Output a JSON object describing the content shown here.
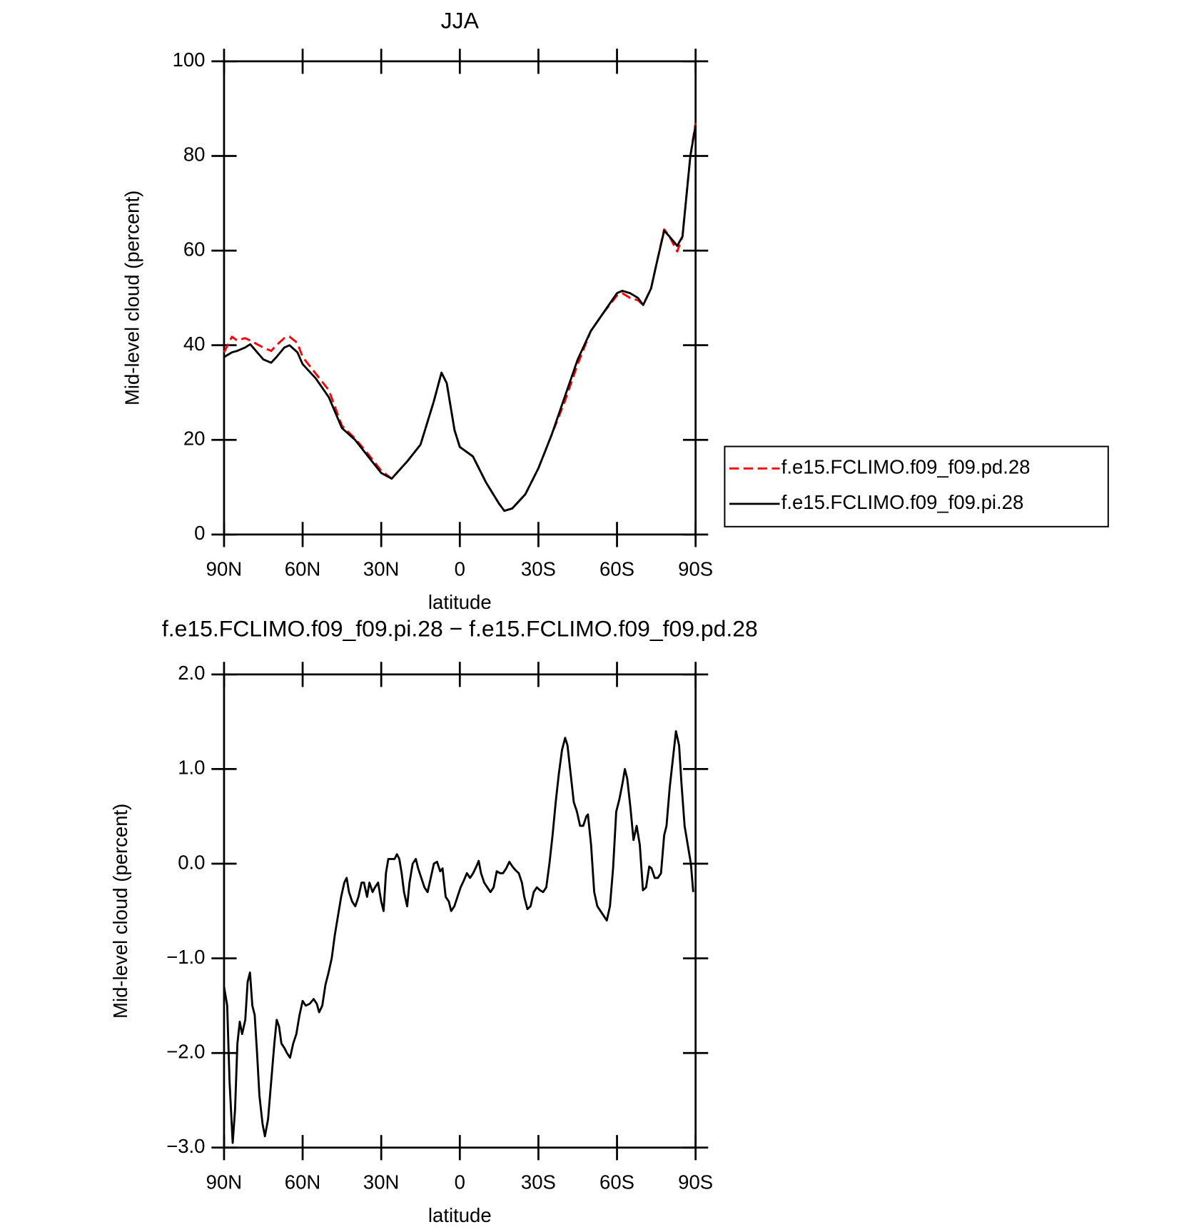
{
  "chart_data": [
    {
      "type": "line",
      "title": "JJA",
      "x_label": "latitude",
      "y_label": "Mid-level cloud (percent)",
      "x": [
        90,
        87,
        85,
        82,
        80,
        75,
        72,
        70,
        67,
        65,
        62,
        60,
        55,
        50,
        45,
        40,
        35,
        30,
        26,
        20,
        15,
        10,
        7,
        5,
        2,
        0,
        -5,
        -10,
        -15,
        -17,
        -20,
        -25,
        -30,
        -35,
        -40,
        -45,
        -50,
        -55,
        -60,
        -62,
        -65,
        -68,
        -70,
        -73,
        -75,
        -78,
        -80,
        -83,
        -85,
        -88,
        -90
      ],
      "series": [
        {
          "name": "f.e15.FCLIMO.f09_f09.pd.28",
          "color": "#ff0000",
          "dash": true,
          "values": [
            38.5,
            41.8,
            41,
            41.5,
            41,
            39.5,
            38.8,
            40,
            41.5,
            41.8,
            40.5,
            37.5,
            34,
            30.5,
            23,
            20.3,
            17,
            13.5,
            11.8,
            15.5,
            19,
            28,
            34.2,
            32,
            22,
            18.5,
            16.5,
            11,
            6.5,
            5,
            5.5,
            8.5,
            14,
            21,
            28,
            36,
            43,
            47,
            50.5,
            51,
            50,
            49.5,
            48.5,
            52,
            57,
            64.5,
            63,
            59.8,
            63,
            80,
            87
          ]
        },
        {
          "name": "f.e15.FCLIMO.f09_f09.pi.28",
          "color": "#000000",
          "dash": false,
          "values": [
            37.5,
            38.5,
            38.8,
            39.5,
            40.2,
            37,
            36.3,
            37.5,
            39.5,
            40,
            38.5,
            36,
            33,
            29,
            22.5,
            20,
            16.5,
            13,
            11.8,
            15.5,
            19,
            28,
            34.2,
            32,
            22,
            18.5,
            16.5,
            11,
            6.5,
            5,
            5.5,
            8.5,
            14,
            21,
            29,
            37,
            43,
            47,
            51,
            51.5,
            51,
            50,
            48.5,
            52,
            57,
            64.2,
            63,
            61,
            63,
            80,
            86.5
          ]
        }
      ],
      "xlim": [
        90,
        -90
      ],
      "xticks": [
        {
          "value": 90,
          "label": "90N"
        },
        {
          "value": 60,
          "label": "60N"
        },
        {
          "value": 30,
          "label": "30N"
        },
        0,
        {
          "value": -30,
          "label": "30S"
        },
        {
          "value": -60,
          "label": "60S"
        },
        {
          "value": -90,
          "label": "90S"
        }
      ],
      "ylim": [
        0,
        100
      ],
      "yticks": [
        0,
        20,
        40,
        60,
        80,
        100
      ],
      "legend": "right"
    },
    {
      "type": "line",
      "title": "f.e15.FCLIMO.f09_f09.pi.28 − f.e15.FCLIMO.f09_f09.pd.28",
      "x_label": "latitude",
      "y_label": "Mid-level cloud (percent)",
      "x": [
        90,
        88.8,
        87.9,
        86.7,
        85.8,
        84.9,
        84,
        83.1,
        81.9,
        81,
        80.1,
        79.2,
        78.3,
        77.4,
        76.5,
        75.3,
        74.4,
        73.2,
        72,
        70.8,
        69.9,
        69,
        68.1,
        66.9,
        66,
        64.8,
        63.6,
        62.4,
        61.2,
        60,
        58.8,
        57.3,
        55.8,
        54.6,
        53.7,
        52.5,
        51.3,
        50.1,
        48.9,
        47.7,
        46.5,
        45.3,
        44.1,
        43.2,
        42.3,
        41.1,
        39.9,
        38.7,
        37.5,
        36.6,
        35.4,
        34.5,
        33.3,
        32.4,
        31.2,
        30,
        29.1,
        28.2,
        27.3,
        26.1,
        24.9,
        24,
        23.1,
        22.2,
        21.3,
        20.1,
        19.2,
        18,
        16.8,
        15.9,
        14.7,
        13.5,
        12.3,
        11.1,
        9.9,
        8.7,
        7.5,
        6.6,
        5.4,
        4.2,
        3.3,
        2.1,
        0.9,
        -0.3,
        -1.5,
        -2.7,
        -3.9,
        -5.1,
        -6.3,
        -7.2,
        -8.1,
        -9.3,
        -10.5,
        -11.7,
        -12.9,
        -14.1,
        -15.3,
        -16.5,
        -17.7,
        -18.9,
        -20.1,
        -21.3,
        -22.5,
        -23.7,
        -24.6,
        -25.8,
        -27,
        -28.2,
        -29.4,
        -30.6,
        -31.8,
        -33,
        -34.2,
        -35.4,
        -36.6,
        -37.8,
        -39,
        -40.2,
        -41.1,
        -42.3,
        -43.5,
        -44.7,
        -45.9,
        -47.1,
        -48.3,
        -48.9,
        -50.1,
        -51.3,
        -52.5,
        -53.7,
        -54.9,
        -56.1,
        -57.3,
        -58.5,
        -59.7,
        -60.9,
        -62.1,
        -63,
        -63.9,
        -65.1,
        -66.3,
        -67.5,
        -68.7,
        -69.9,
        -71.1,
        -72.3,
        -73.2,
        -74.4,
        -75.6,
        -76.8,
        -78,
        -78.9,
        -80.1,
        -81.3,
        -82.5,
        -83.7,
        -84.6,
        -85.8,
        -87,
        -88.2,
        -89.1
      ],
      "series": [
        {
          "color": "#000000",
          "dash": false,
          "values": [
            -1.3,
            -1.5,
            -2.3,
            -2.95,
            -2.6,
            -1.9,
            -1.67,
            -1.8,
            -1.65,
            -1.25,
            -1.15,
            -1.5,
            -1.6,
            -2,
            -2.45,
            -2.75,
            -2.88,
            -2.7,
            -2.3,
            -1.9,
            -1.65,
            -1.72,
            -1.9,
            -1.95,
            -2,
            -2.05,
            -1.9,
            -1.8,
            -1.6,
            -1.45,
            -1.5,
            -1.48,
            -1.43,
            -1.48,
            -1.57,
            -1.5,
            -1.28,
            -1.15,
            -1,
            -0.75,
            -0.55,
            -0.35,
            -0.2,
            -0.15,
            -0.3,
            -0.4,
            -0.45,
            -0.35,
            -0.2,
            -0.2,
            -0.35,
            -0.2,
            -0.3,
            -0.25,
            -0.2,
            -0.4,
            -0.5,
            -0.1,
            0.05,
            0.05,
            0.05,
            0.1,
            0.05,
            -0.1,
            -0.3,
            -0.45,
            -0.2,
            0,
            0.05,
            -0.05,
            -0.15,
            -0.25,
            -0.3,
            -0.15,
            0,
            0.02,
            -0.08,
            -0.05,
            -0.35,
            -0.4,
            -0.5,
            -0.45,
            -0.35,
            -0.25,
            -0.18,
            -0.1,
            -0.15,
            -0.1,
            -0.03,
            0.03,
            -0.1,
            -0.2,
            -0.25,
            -0.3,
            -0.25,
            -0.08,
            -0.1,
            -0.1,
            -0.05,
            0.02,
            -0.03,
            -0.07,
            -0.1,
            -0.2,
            -0.35,
            -0.48,
            -0.45,
            -0.3,
            -0.25,
            -0.28,
            -0.3,
            -0.25,
            0,
            0.3,
            0.65,
            0.95,
            1.2,
            1.33,
            1.25,
            0.95,
            0.65,
            0.55,
            0.4,
            0.4,
            0.5,
            0.52,
            0.2,
            -0.3,
            -0.45,
            -0.5,
            -0.55,
            -0.6,
            -0.45,
            -0.05,
            0.55,
            0.68,
            0.85,
            1,
            0.9,
            0.6,
            0.25,
            0.4,
            0.2,
            -0.28,
            -0.25,
            -0.03,
            -0.05,
            -0.15,
            -0.15,
            -0.1,
            0.3,
            0.4,
            0.8,
            1.1,
            1.4,
            1.25,
            0.85,
            0.4,
            0.2,
            0,
            -0.3
          ]
        }
      ],
      "xlim": [
        90,
        -90
      ],
      "xticks": [
        {
          "value": 90,
          "label": "90N"
        },
        {
          "value": 60,
          "label": "60N"
        },
        {
          "value": 30,
          "label": "30N"
        },
        0,
        {
          "value": -30,
          "label": "30S"
        },
        {
          "value": -60,
          "label": "60S"
        },
        {
          "value": -90,
          "label": "90S"
        }
      ],
      "ylim": [
        -3,
        2
      ],
      "yticks": [
        {
          "value": -3,
          "label": "−3.0"
        },
        {
          "value": -2,
          "label": "−2.0"
        },
        {
          "value": -1,
          "label": "−1.0"
        },
        {
          "value": 0,
          "label": "0.0"
        },
        {
          "value": 1,
          "label": "1.0"
        },
        {
          "value": 2,
          "label": "2.0"
        }
      ]
    }
  ]
}
